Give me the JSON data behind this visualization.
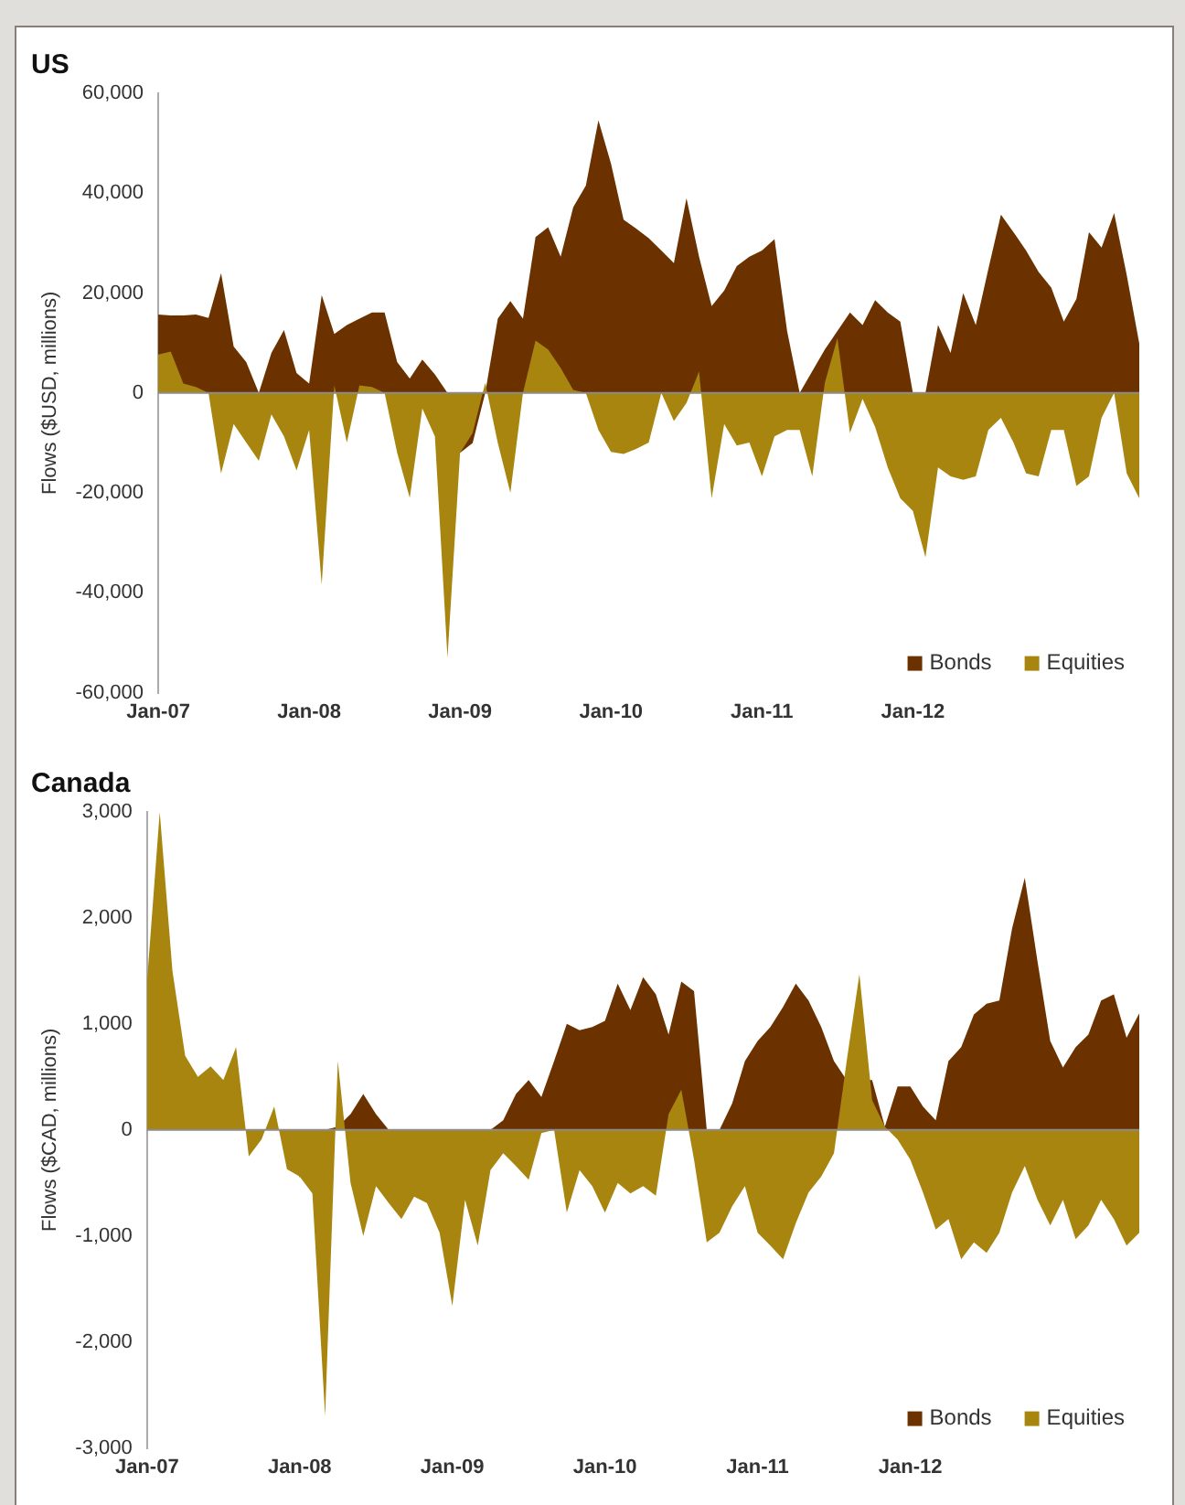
{
  "chart_data": [
    {
      "type": "area",
      "title": "US",
      "ylabel": "Flows ($USD, millions)",
      "categories": [
        "Jan-07",
        null,
        null,
        null,
        null,
        null,
        null,
        null,
        null,
        null,
        null,
        null,
        "Jan-08",
        null,
        null,
        null,
        null,
        null,
        null,
        null,
        null,
        null,
        null,
        null,
        "Jan-09",
        null,
        null,
        null,
        null,
        null,
        null,
        null,
        null,
        null,
        null,
        null,
        "Jan-10",
        null,
        null,
        null,
        null,
        null,
        null,
        null,
        null,
        null,
        null,
        null,
        "Jan-11",
        null,
        null,
        null,
        null,
        null,
        null,
        null,
        null,
        null,
        null,
        null,
        "Jan-12",
        null,
        null,
        null,
        null,
        null,
        null,
        null,
        null,
        null,
        null,
        null,
        null,
        null,
        null,
        null,
        null,
        null,
        null
      ],
      "series": [
        {
          "name": "Bonds",
          "color": "#6b3200",
          "values": [
            15700,
            15500,
            15500,
            15700,
            15000,
            24000,
            9300,
            6200,
            0,
            8000,
            12600,
            4000,
            1900,
            19600,
            11800,
            13600,
            14900,
            16100,
            16100,
            6200,
            2900,
            6700,
            3700,
            0,
            -12000,
            -10000,
            0,
            14900,
            18400,
            14900,
            31200,
            33200,
            27300,
            37200,
            41500,
            54600,
            45900,
            34700,
            32900,
            31000,
            28500,
            26000,
            39000,
            27300,
            17400,
            20500,
            25400,
            27300,
            28500,
            30800,
            12400,
            0,
            null,
            8700,
            null,
            16100,
            13600,
            18600,
            16100,
            14300,
            0,
            0,
            13600,
            8000,
            20000,
            13600,
            24800,
            35700,
            32200,
            28500,
            24200,
            21100,
            14300,
            18800,
            32200,
            29100,
            36000,
            23600,
            9900
          ]
        },
        {
          "name": "Equities",
          "color": "#a8850f",
          "values": [
            7700,
            8300,
            1900,
            1200,
            0,
            -16100,
            -6200,
            -9900,
            -13600,
            -4300,
            -8700,
            -15500,
            -7400,
            -38400,
            1500,
            -9900,
            1500,
            1200,
            0,
            -12000,
            -21000,
            -3100,
            -8700,
            -53000,
            -12000,
            -8000,
            2000,
            -10000,
            -20000,
            0,
            10500,
            8700,
            5000,
            600,
            0,
            -7400,
            -11800,
            -12200,
            -11200,
            -9900,
            0,
            -5600,
            -2000,
            4300,
            -21100,
            -6200,
            -10500,
            -9900,
            -16700,
            -8700,
            -7400,
            -7400,
            -16700,
            2000,
            11000,
            -8000,
            -1200,
            -6800,
            -14900,
            -21100,
            -23600,
            -32900,
            -14900,
            -16700,
            -17400,
            -16700,
            -7400,
            -5000,
            -9900,
            -16100,
            -16700,
            -7400,
            -7400,
            -18600,
            -16700,
            -5000,
            0,
            -16100,
            -21100
          ]
        }
      ],
      "ylim": [
        -60000,
        60000
      ],
      "yticks": [
        {
          "value": -60000,
          "label": "-60,000"
        },
        {
          "value": -40000,
          "label": "-40,000"
        },
        {
          "value": -20000,
          "label": "-20,000"
        },
        0,
        {
          "value": 20000,
          "label": "20,000"
        },
        {
          "value": 40000,
          "label": "40,000"
        },
        {
          "value": 60000,
          "label": "60,000"
        }
      ],
      "legend": "bottom right"
    },
    {
      "type": "area",
      "title": "Canada",
      "ylabel": "Flows ($CAD, millions)",
      "categories": [
        "Jan-07",
        null,
        null,
        null,
        null,
        null,
        null,
        null,
        null,
        null,
        null,
        null,
        "Jan-08",
        null,
        null,
        null,
        null,
        null,
        null,
        null,
        null,
        null,
        null,
        null,
        "Jan-09",
        null,
        null,
        null,
        null,
        null,
        null,
        null,
        null,
        null,
        null,
        null,
        "Jan-10",
        null,
        null,
        null,
        null,
        null,
        null,
        null,
        null,
        null,
        null,
        null,
        "Jan-11",
        null,
        null,
        null,
        null,
        null,
        null,
        null,
        null,
        null,
        null,
        null,
        "Jan-12",
        null,
        null,
        null,
        null,
        null,
        null,
        null,
        null,
        null,
        null,
        null,
        null,
        null,
        null,
        null,
        null,
        null,
        null
      ],
      "series": [
        {
          "name": "Bonds",
          "color": "#6b3200",
          "values": [
            0,
            0,
            0,
            0,
            0,
            0,
            0,
            0,
            0,
            0,
            0,
            0,
            -450,
            0,
            0,
            30,
            150,
            340,
            150,
            0,
            0,
            0,
            0,
            0,
            0,
            0,
            0,
            0,
            90,
            340,
            470,
            310,
            650,
            1000,
            940,
            970,
            1030,
            1380,
            1130,
            1440,
            1280,
            900,
            1400,
            1310,
            0,
            0,
            250,
            650,
            840,
            970,
            1160,
            1380,
            1220,
            970,
            650,
            470,
            null,
            470,
            30,
            410,
            410,
            220,
            90,
            650,
            780,
            1090,
            1190,
            1220,
            1900,
            2380,
            1590,
            840,
            590,
            780,
            900,
            1220,
            1280,
            870,
            1100
          ]
        },
        {
          "name": "Equities",
          "color": "#a8850f",
          "values": [
            1400,
            3000,
            1500,
            700,
            500,
            600,
            470,
            780,
            -250,
            -90,
            220,
            -370,
            -440,
            -600,
            -2700,
            650,
            -500,
            -1000,
            -530,
            -690,
            -840,
            -630,
            -690,
            -970,
            -1660,
            -660,
            -1090,
            -380,
            -220,
            -340,
            -470,
            -30,
            0,
            -780,
            -380,
            -530,
            -780,
            -500,
            -600,
            -530,
            -620,
            150,
            380,
            -280,
            -1060,
            -970,
            -720,
            -530,
            -970,
            -1090,
            -1220,
            -880,
            -590,
            -440,
            -220,
            650,
            1470,
            280,
            30,
            -90,
            -280,
            -590,
            -940,
            -840,
            -1220,
            -1060,
            -1160,
            -970,
            -590,
            -340,
            -660,
            -900,
            -660,
            -1030,
            -900,
            -660,
            -840,
            -1090,
            -970
          ]
        }
      ],
      "ylim": [
        -3000,
        3000
      ],
      "yticks": [
        {
          "value": -3000,
          "label": "-3,000"
        },
        {
          "value": -2000,
          "label": "-2,000"
        },
        {
          "value": -1000,
          "label": "-1,000"
        },
        0,
        {
          "value": 1000,
          "label": "1,000"
        },
        {
          "value": 2000,
          "label": "2,000"
        },
        {
          "value": 3000,
          "label": "3,000"
        }
      ],
      "legend": "bottom right"
    }
  ]
}
